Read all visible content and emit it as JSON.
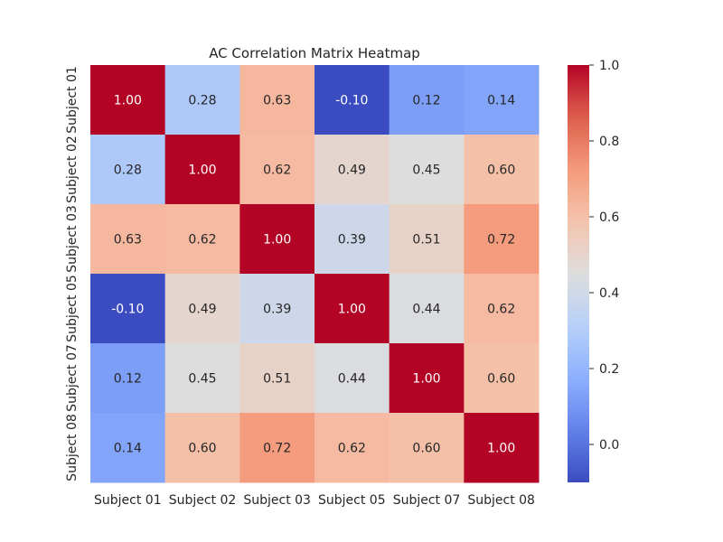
{
  "chart_data": {
    "type": "heatmap",
    "title": "AC Correlation Matrix Heatmap",
    "xlabel": "",
    "ylabel": "",
    "x_categories": [
      "Subject 01",
      "Subject 02",
      "Subject 03",
      "Subject 05",
      "Subject 07",
      "Subject 08"
    ],
    "y_categories": [
      "Subject 01",
      "Subject 02",
      "Subject 03",
      "Subject 05",
      "Subject 07",
      "Subject 08"
    ],
    "values": [
      [
        1.0,
        0.28,
        0.63,
        -0.1,
        0.12,
        0.14
      ],
      [
        0.28,
        1.0,
        0.62,
        0.49,
        0.45,
        0.6
      ],
      [
        0.63,
        0.62,
        1.0,
        0.39,
        0.51,
        0.72
      ],
      [
        -0.1,
        0.49,
        0.39,
        1.0,
        0.44,
        0.62
      ],
      [
        0.12,
        0.45,
        0.51,
        0.44,
        1.0,
        0.6
      ],
      [
        0.14,
        0.6,
        0.72,
        0.62,
        0.6,
        1.0
      ]
    ],
    "annotations": [
      [
        "1.00",
        "0.28",
        "0.63",
        "-0.10",
        "0.12",
        "0.14"
      ],
      [
        "0.28",
        "1.00",
        "0.62",
        "0.49",
        "0.45",
        "0.60"
      ],
      [
        "0.63",
        "0.62",
        "1.00",
        "0.39",
        "0.51",
        "0.72"
      ],
      [
        "-0.10",
        "0.49",
        "0.39",
        "1.00",
        "0.44",
        "0.62"
      ],
      [
        "0.12",
        "0.45",
        "0.51",
        "0.44",
        "1.00",
        "0.60"
      ],
      [
        "0.14",
        "0.60",
        "0.72",
        "0.62",
        "0.60",
        "1.00"
      ]
    ],
    "colormap": "coolwarm",
    "vmin": -0.1,
    "vmax": 1.0,
    "colorbar_ticks": [
      0.0,
      0.2,
      0.4,
      0.6,
      0.8,
      1.0
    ],
    "colorbar_tick_labels": [
      "0.0",
      "0.2",
      "0.4",
      "0.6",
      "0.8",
      "1.0"
    ],
    "grid": false,
    "legend": "colorbar-right"
  }
}
